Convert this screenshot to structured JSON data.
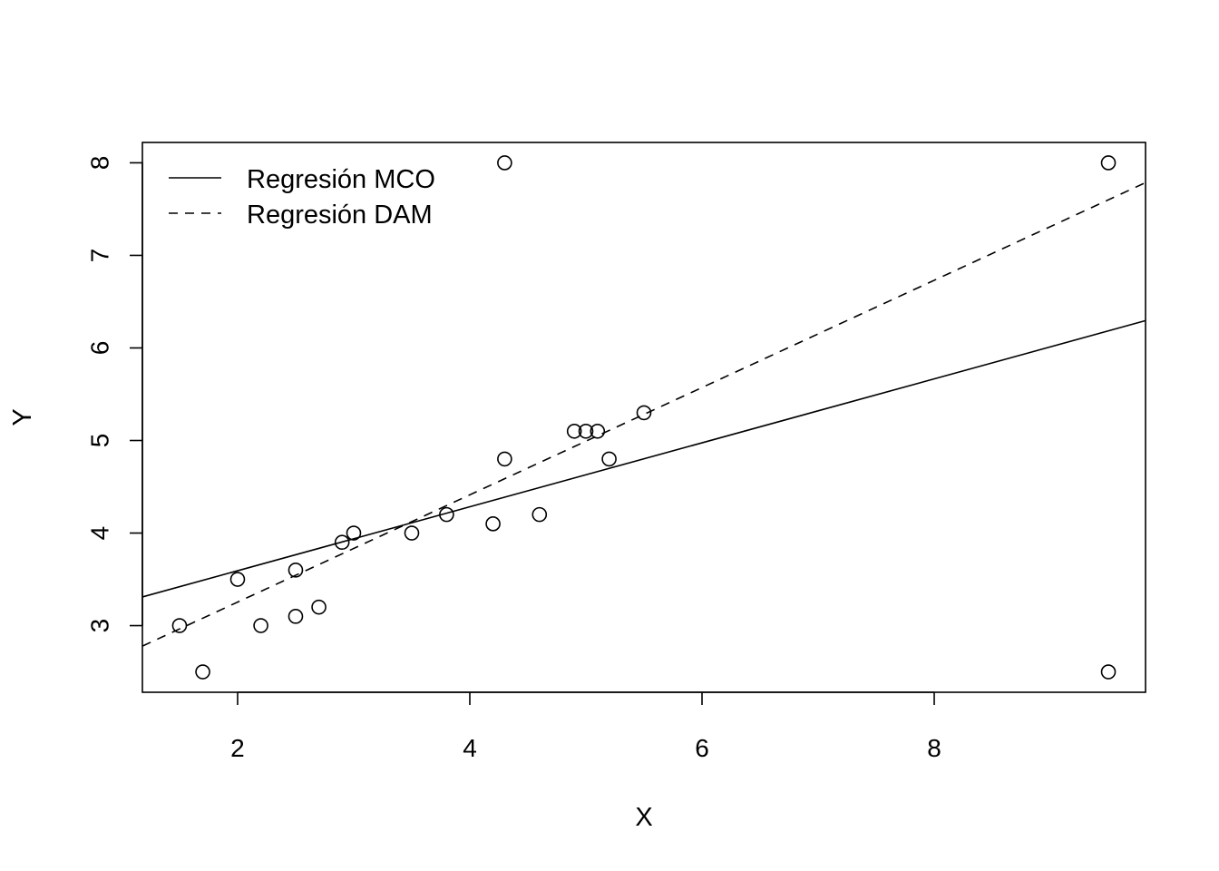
{
  "chart_data": {
    "type": "scatter",
    "title": "",
    "xlabel": "X",
    "ylabel": "Y",
    "xlim": [
      1.18,
      9.82
    ],
    "ylim": [
      2.28,
      8.22
    ],
    "x_ticks": [
      2,
      4,
      6,
      8
    ],
    "x_tick_labels": [
      "2",
      "4",
      "6",
      "8"
    ],
    "y_ticks": [
      3,
      4,
      5,
      6,
      7,
      8
    ],
    "y_tick_labels": [
      "3",
      "4",
      "5",
      "6",
      "7",
      "8"
    ],
    "grid": false,
    "legend_position": "top-left",
    "points": {
      "x": [
        1.5,
        1.7,
        2.0,
        2.2,
        2.5,
        2.5,
        2.7,
        2.9,
        3.0,
        3.5,
        3.8,
        4.2,
        4.3,
        4.3,
        4.6,
        4.9,
        5.0,
        5.1,
        5.2,
        5.5,
        9.5,
        9.5
      ],
      "y": [
        3.0,
        2.5,
        3.5,
        3.0,
        3.1,
        3.6,
        3.2,
        3.9,
        4.0,
        4.0,
        4.2,
        4.1,
        4.8,
        8.0,
        4.2,
        5.1,
        5.1,
        5.1,
        4.8,
        5.3,
        8.0,
        2.5
      ]
    },
    "series": [
      {
        "name": "Regresión MCO",
        "line_style": "solid",
        "intercept": 2.902,
        "slope": 0.3455
      },
      {
        "name": "Regresión DAM",
        "line_style": "dashed",
        "intercept": 2.095,
        "slope": 0.5795
      }
    ],
    "colors": {
      "ink": "#000000",
      "background": "#ffffff"
    }
  }
}
